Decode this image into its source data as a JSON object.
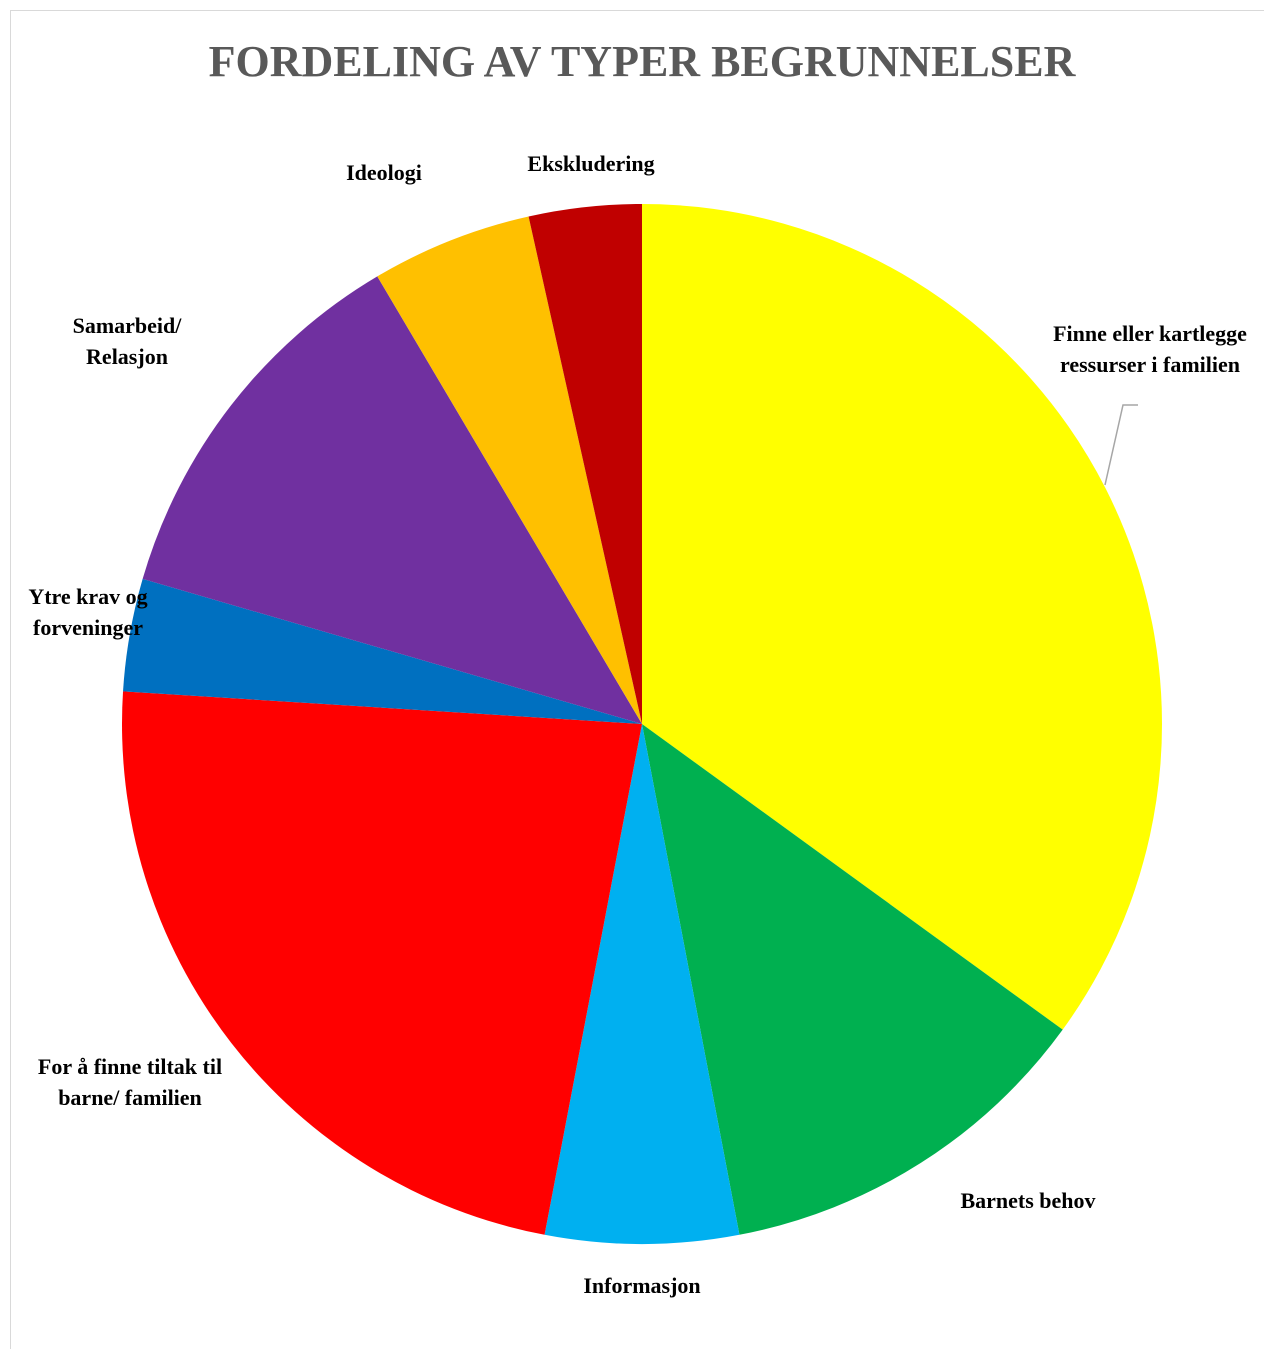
{
  "chart_data": {
    "type": "pie",
    "title": "FORDELING AV TYPER BEGRUNNELSER",
    "categories": [
      "Finne eller kartlegge ressurser i familien",
      "Barnets behov",
      "Informasjon",
      "For å finne tiltak til barne/ familien",
      "Ytre krav og forveninger",
      "Samarbeid/ Relasjon",
      "Ideologi",
      "Ekskludering"
    ],
    "values": [
      35,
      12,
      6,
      23,
      3.5,
      12,
      5,
      3.5
    ],
    "colors": [
      "#ffff00",
      "#00b050",
      "#00b0f0",
      "#ff0000",
      "#0070c0",
      "#7030a0",
      "#ffc000",
      "#c00000"
    ]
  }
}
